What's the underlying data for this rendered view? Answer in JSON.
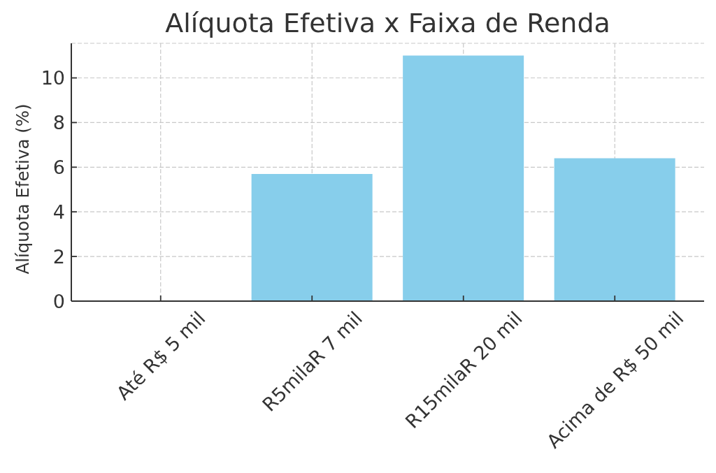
{
  "chart_data": {
    "type": "bar",
    "title": "Alíquota Efetiva x Faixa de Renda",
    "ylabel": "Alíquota Efetiva (%)",
    "categories": [
      "Até R$ 5 mil",
      "R5milaR 7 mil",
      "R15milaR 20 mil",
      "Acima de R$ 50 mil"
    ],
    "values": [
      0,
      5.7,
      11,
      6.4
    ],
    "color": "#87ceeb",
    "ylim": [
      0,
      11.55
    ],
    "yticks": [
      0,
      2,
      4,
      6,
      8,
      10
    ],
    "grid": true
  }
}
